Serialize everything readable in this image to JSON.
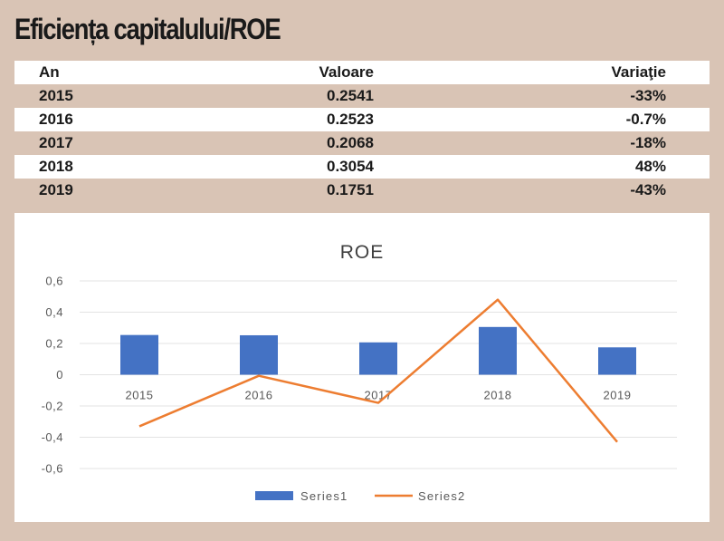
{
  "title": "Eficiența capitalului/ROE",
  "table": {
    "headers": [
      "An",
      "Valoare",
      "Variaţie"
    ],
    "rows": [
      [
        "2015",
        "0.2541",
        "-33%"
      ],
      [
        "2016",
        "0.2523",
        "-0.7%"
      ],
      [
        "2017",
        "0.2068",
        "-18%"
      ],
      [
        "2018",
        "0.3054",
        "48%"
      ],
      [
        "2019",
        "0.1751",
        "-43%"
      ]
    ]
  },
  "chart_data": {
    "type": "bar",
    "title": "ROE",
    "categories": [
      "2015",
      "2016",
      "2017",
      "2018",
      "2019"
    ],
    "series": [
      {
        "name": "Series1",
        "type": "bar",
        "color": "#4472c4",
        "values": [
          0.2541,
          0.2523,
          0.2068,
          0.3054,
          0.1751
        ]
      },
      {
        "name": "Series2",
        "type": "line",
        "color": "#ed7d31",
        "values": [
          -0.33,
          -0.007,
          -0.18,
          0.48,
          -0.43
        ]
      }
    ],
    "ylim": [
      -0.6,
      0.6
    ],
    "yticks": [
      "0,6",
      "0,4",
      "0,2",
      "0",
      "-0,2",
      "-0,4",
      "-0,6"
    ],
    "grid": true,
    "legend": "bottom"
  }
}
